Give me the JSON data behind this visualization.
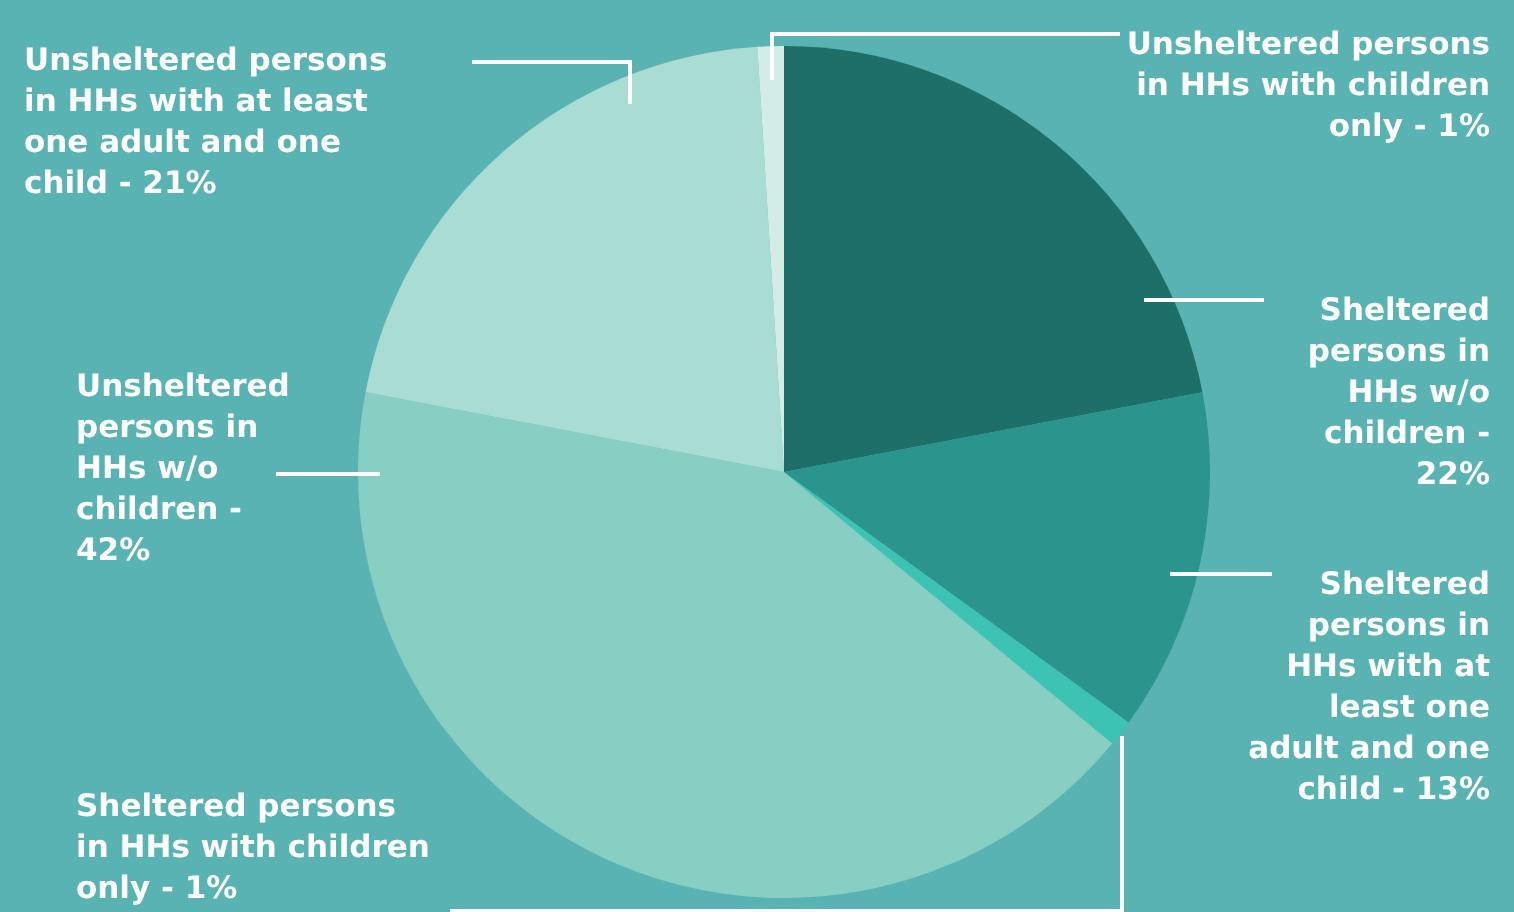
{
  "chart_data": {
    "type": "pie",
    "categories": [
      "Sheltered persons in HHs w/o children - 22%",
      "Sheltered persons in HHs with at least one adult and one child - 13%",
      "Sheltered persons in HHs with children only - 1%",
      "Unsheltered persons in HHs w/o children - 42%",
      "Unsheltered persons in HHs with at least one adult and one child - 21%",
      "Unsheltered persons in HHs with children only - 1%"
    ],
    "values": [
      22,
      13,
      1,
      42,
      21,
      1
    ],
    "colors": [
      "#1d6f68",
      "#2a948d",
      "#3cc3b3",
      "#86cfc2",
      "#a9dcd3",
      "#d3ede6"
    ],
    "legend": false
  }
}
